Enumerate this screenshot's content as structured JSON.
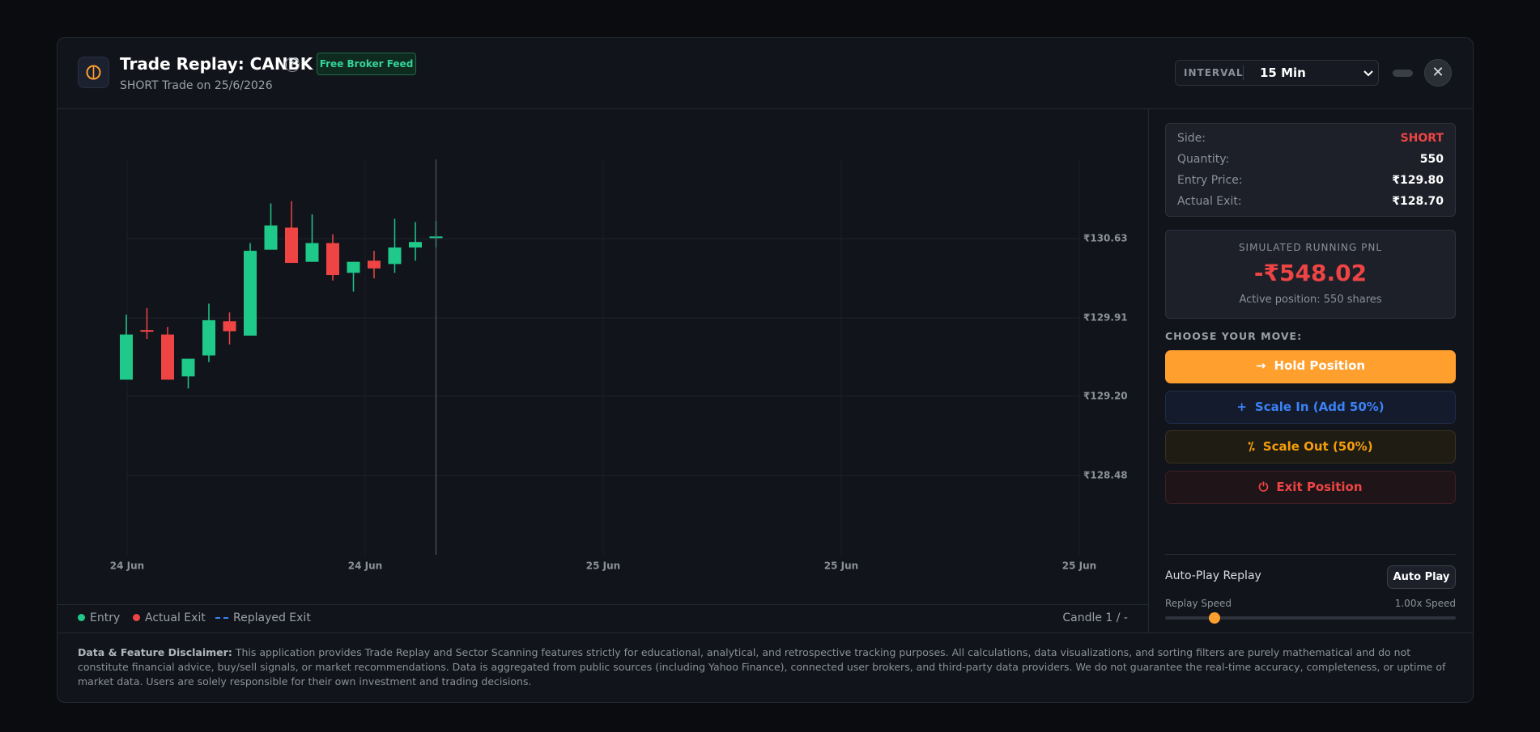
{
  "header": {
    "title": "Trade Replay: CANBK",
    "subtitle": "SHORT Trade on 25/6/2026",
    "badge": "Free Broker Feed",
    "interval_label": "INTERVAL",
    "interval": "15 Min"
  },
  "chart_data": {
    "type": "candlestick",
    "x_labels": [
      "24 Jun",
      "24 Jun",
      "25 Jun",
      "25 Jun",
      "25 Jun"
    ],
    "open": [
      129.35,
      129.8,
      129.76,
      129.38,
      129.57,
      129.88,
      129.75,
      130.53,
      130.73,
      130.42,
      130.59,
      130.32,
      130.43,
      130.4,
      130.55,
      130.64
    ],
    "high": [
      129.94,
      130.0,
      129.83,
      129.54,
      130.04,
      129.96,
      130.59,
      130.95,
      130.97,
      130.85,
      130.67,
      130.42,
      130.52,
      130.81,
      130.78,
      130.79
    ],
    "low": [
      129.35,
      129.72,
      129.35,
      129.27,
      129.51,
      129.67,
      129.75,
      130.53,
      130.41,
      130.42,
      130.25,
      130.15,
      130.27,
      130.32,
      130.43,
      130.55
    ],
    "close": [
      129.76,
      129.79,
      129.35,
      129.54,
      129.89,
      129.79,
      130.52,
      130.75,
      130.41,
      130.59,
      130.3,
      130.42,
      130.36,
      130.55,
      130.6,
      130.65
    ],
    "ylim": [
      127.76,
      131.35
    ],
    "yticks": [
      {
        "value": 130.63,
        "label": "₹130.63"
      },
      {
        "value": 129.91,
        "label": "₹129.91"
      },
      {
        "value": 129.2,
        "label": "₹129.20"
      },
      {
        "value": 128.48,
        "label": "₹128.48"
      }
    ],
    "up_color": "#1fc98a",
    "down_color": "#ef4444",
    "grid": true
  },
  "legend": {
    "entry": "Entry",
    "actual_exit": "Actual Exit",
    "replayed_exit": "Replayed Exit",
    "counter": "Candle 1 / -"
  },
  "trade": {
    "rows": [
      {
        "label": "Side:",
        "value": "SHORT"
      },
      {
        "label": "Quantity:",
        "value": "550"
      },
      {
        "label": "Entry Price:",
        "value": "₹129.80"
      },
      {
        "label": "Actual Exit:",
        "value": "₹128.70"
      }
    ]
  },
  "pnl": {
    "label": "SIMULATED RUNNING PNL",
    "value": "-₹548.02",
    "note": "Active position: 550 shares"
  },
  "moves": {
    "label": "CHOOSE YOUR MOVE:",
    "buttons": [
      "Hold Position",
      "Scale In (Add 50%)",
      "Scale Out (50%)",
      "Exit Position"
    ]
  },
  "autoplay": {
    "label": "Auto-Play Replay",
    "button": "Auto Play",
    "speed_label": "Replay Speed",
    "speed": "1.00x Speed"
  },
  "disclaimer": {
    "heading": "Data & Feature Disclaimer:",
    "text": "This application provides Trade Replay and Sector Scanning features strictly for educational, analytical, and retrospective tracking purposes. All calculations, data visualizations, and sorting filters are purely mathematical and do not constitute financial advice, buy/sell signals, or market recommendations. Data is aggregated from public sources (including Yahoo Finance), connected user brokers, and third-party data providers. We do not guarantee the real-time accuracy, completeness, or uptime of market data. Users are solely responsible for their own investment and trading decisions."
  }
}
